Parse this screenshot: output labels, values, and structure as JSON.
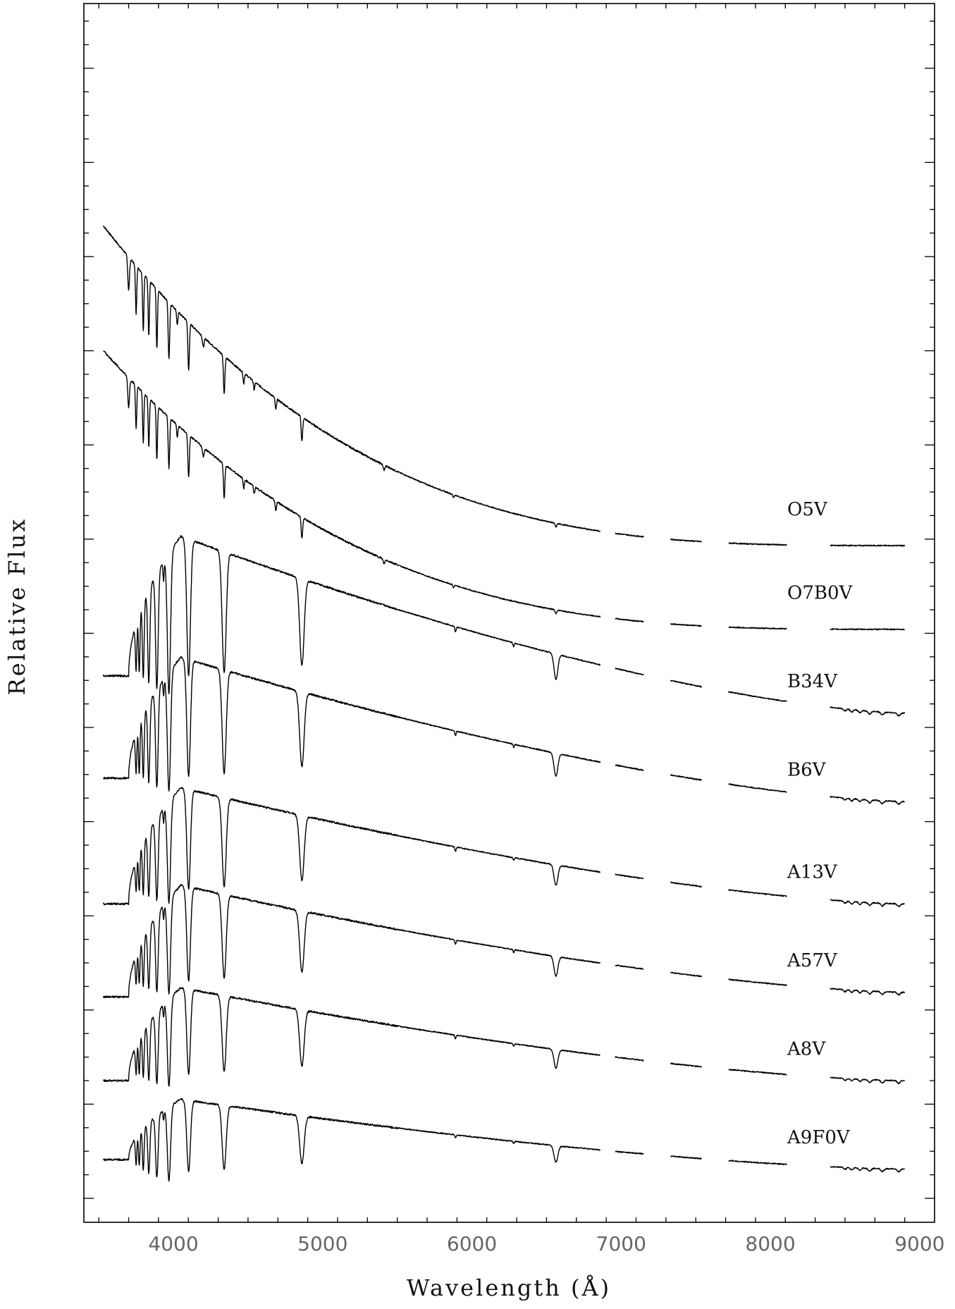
{
  "chart_data": {
    "type": "line",
    "title": "",
    "xlabel": "Wavelength (Å)",
    "ylabel": "Relative Flux",
    "xlim": [
      3400,
      9100
    ],
    "x_ticks": [
      "4000",
      "5000",
      "6000",
      "7000",
      "8000",
      "9000"
    ],
    "y_tick_labels": false,
    "grid": false,
    "legend": "none (series labeled directly at right end)",
    "gaps_angstrom": [
      [
        6860,
        6960
      ],
      [
        7150,
        7330
      ],
      [
        7540,
        7720
      ],
      [
        8110,
        8400
      ]
    ],
    "series": [
      {
        "name": "O5V",
        "class": "hot",
        "baseline": 12.6,
        "blue_flux": 7.9,
        "red_flux": 0.9
      },
      {
        "name": "O7B0V",
        "class": "hot",
        "baseline": 10.8,
        "blue_flux": 7.0,
        "red_flux": 0.9
      },
      {
        "name": "B34V",
        "class": "balmer",
        "baseline": 8.9,
        "balmer_peak": 4.8,
        "jump_flux": 1.8,
        "red_flux": 1.0
      },
      {
        "name": "B6V",
        "class": "balmer",
        "baseline": 7.0,
        "balmer_peak": 4.1,
        "jump_flux": 1.5,
        "red_flux": 1.0
      },
      {
        "name": "A13V",
        "class": "balmer",
        "baseline": 4.8,
        "balmer_peak": 3.5,
        "jump_flux": 1.0,
        "red_flux": 1.0
      },
      {
        "name": "A57V",
        "class": "balmer",
        "baseline": 2.9,
        "balmer_peak": 3.3,
        "jump_flux": 0.9,
        "red_flux": 1.0
      },
      {
        "name": "A8V",
        "class": "balmer",
        "baseline": 1.0,
        "balmer_peak": 3.0,
        "jump_flux": 1.0,
        "red_flux": 1.0
      },
      {
        "name": "A9F0V",
        "class": "balmer",
        "baseline": -0.9,
        "balmer_peak": 2.5,
        "jump_flux": 1.2,
        "red_flux": 1.0
      }
    ],
    "absorption_lines_angstrom": [
      3835,
      3889,
      3970,
      4102,
      4340,
      4861,
      5890,
      6563
    ],
    "colors": {
      "line": "#000000",
      "tick_label": "#666666"
    }
  }
}
